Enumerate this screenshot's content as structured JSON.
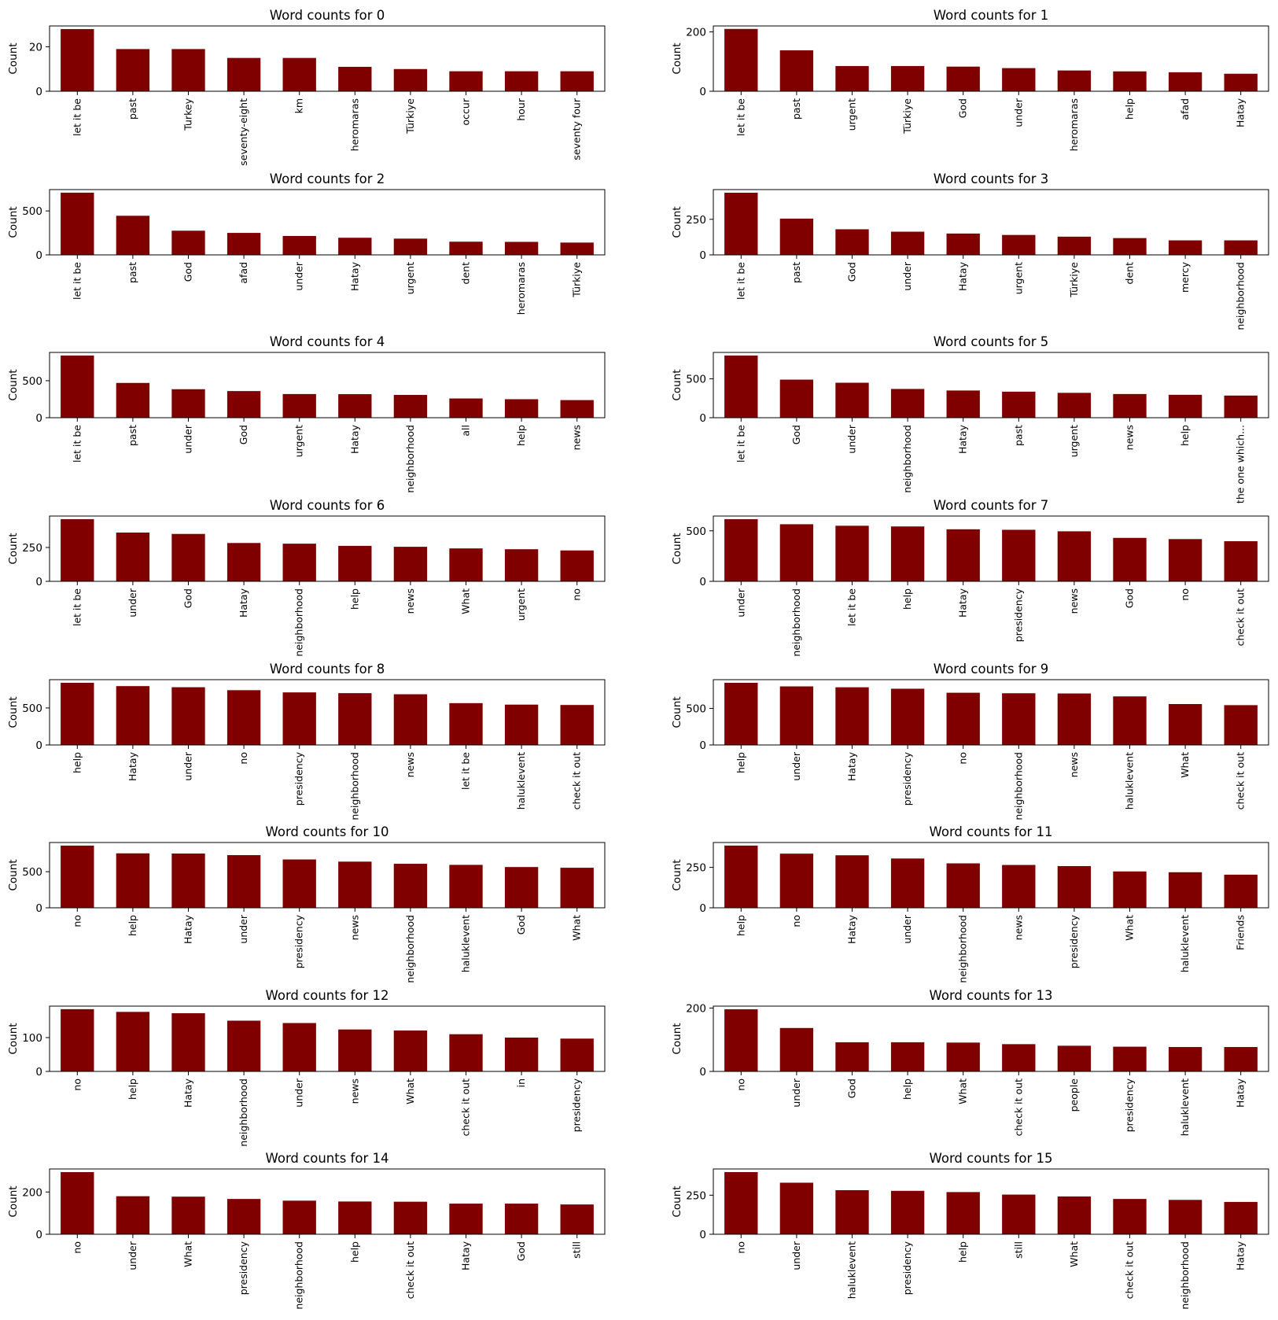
{
  "chart_data": [
    {
      "type": "bar",
      "title": "Word counts for 0",
      "ylabel": "Count",
      "yticks": [
        0,
        20
      ],
      "ylim": [
        0,
        29.4
      ],
      "categories": [
        "let it be",
        "past",
        "Turkey",
        "seventy-eight",
        "km",
        "heromaras",
        "Türkiye",
        "occur",
        "hour",
        "seventy four"
      ],
      "values": [
        28,
        19,
        19,
        15,
        15,
        11,
        10,
        9,
        9,
        9
      ]
    },
    {
      "type": "bar",
      "title": "Word counts for 1",
      "ylabel": "Count",
      "yticks": [
        0,
        200
      ],
      "ylim": [
        0,
        220
      ],
      "categories": [
        "let it be",
        "past",
        "urgent",
        "Türkiye",
        "God",
        "under",
        "heromaras",
        "help",
        "afad",
        "Hatay"
      ],
      "values": [
        210,
        138,
        85,
        85,
        83,
        78,
        70,
        67,
        64,
        59
      ]
    },
    {
      "type": "bar",
      "title": "Word counts for 2",
      "ylabel": "Count",
      "yticks": [
        0,
        500
      ],
      "ylim": [
        0,
        743
      ],
      "categories": [
        "let it be",
        "past",
        "God",
        "afad",
        "under",
        "Hatay",
        "urgent",
        "dent",
        "heromaras",
        "Türkiye"
      ],
      "values": [
        708,
        445,
        275,
        250,
        215,
        195,
        185,
        150,
        148,
        140
      ]
    },
    {
      "type": "bar",
      "title": "Word counts for 3",
      "ylabel": "Count",
      "yticks": [
        0,
        250
      ],
      "ylim": [
        0,
        459
      ],
      "categories": [
        "let it be",
        "past",
        "God",
        "under",
        "Hatay",
        "urgent",
        "Türkiye",
        "dent",
        "mercy",
        "neighborhood"
      ],
      "values": [
        437,
        255,
        180,
        163,
        150,
        140,
        128,
        118,
        102,
        102
      ]
    },
    {
      "type": "bar",
      "title": "Word counts for 4",
      "ylabel": "Count",
      "yticks": [
        0,
        500
      ],
      "ylim": [
        0,
        882
      ],
      "categories": [
        "let it be",
        "past",
        "under",
        "God",
        "urgent",
        "Hatay",
        "neighborhood",
        "all",
        "help",
        "news"
      ],
      "values": [
        840,
        470,
        385,
        360,
        320,
        318,
        308,
        260,
        250,
        238
      ]
    },
    {
      "type": "bar",
      "title": "Word counts for 5",
      "ylabel": "Count",
      "yticks": [
        0,
        500
      ],
      "ylim": [
        0,
        840
      ],
      "categories": [
        "let it be",
        "God",
        "under",
        "neighborhood",
        "Hatay",
        "past",
        "urgent",
        "news",
        "help",
        "the one which..."
      ],
      "values": [
        800,
        490,
        450,
        370,
        350,
        335,
        320,
        305,
        295,
        285
      ]
    },
    {
      "type": "bar",
      "title": "Word counts for 6",
      "ylabel": "Count",
      "yticks": [
        0,
        250
      ],
      "ylim": [
        0,
        482
      ],
      "categories": [
        "let it be",
        "under",
        "God",
        "Hatay",
        "neighborhood",
        "help",
        "news",
        "What",
        "urgent",
        "no"
      ],
      "values": [
        459,
        360,
        350,
        283,
        278,
        262,
        255,
        243,
        237,
        228
      ]
    },
    {
      "type": "bar",
      "title": "Word counts for 7",
      "ylabel": "Count",
      "yticks": [
        0,
        500
      ],
      "ylim": [
        0,
        646
      ],
      "categories": [
        "under",
        "neighborhood",
        "let it be",
        "help",
        "Hatay",
        "presidency",
        "news",
        "God",
        "no",
        "check it out"
      ],
      "values": [
        615,
        565,
        550,
        543,
        515,
        510,
        495,
        430,
        418,
        397
      ]
    },
    {
      "type": "bar",
      "title": "Word counts for 8",
      "ylabel": "Count",
      "yticks": [
        0,
        500
      ],
      "ylim": [
        0,
        882
      ],
      "categories": [
        "help",
        "Hatay",
        "under",
        "no",
        "presidency",
        "neighborhood",
        "news",
        "let it be",
        "haluklevent",
        "check it out"
      ],
      "values": [
        840,
        795,
        780,
        740,
        710,
        700,
        685,
        565,
        545,
        540
      ]
    },
    {
      "type": "bar",
      "title": "Word counts for 9",
      "ylabel": "Count",
      "yticks": [
        0,
        500
      ],
      "ylim": [
        0,
        894
      ],
      "categories": [
        "help",
        "under",
        "Hatay",
        "presidency",
        "no",
        "neighborhood",
        "news",
        "haluklevent",
        "What",
        "check it out"
      ],
      "values": [
        851,
        802,
        790,
        770,
        715,
        708,
        705,
        665,
        560,
        545
      ]
    },
    {
      "type": "bar",
      "title": "Word counts for 10",
      "ylabel": "Count",
      "yticks": [
        0,
        500
      ],
      "ylim": [
        0,
        905
      ],
      "categories": [
        "no",
        "help",
        "Hatay",
        "under",
        "presidency",
        "news",
        "neighborhood",
        "haluklevent",
        "God",
        "What"
      ],
      "values": [
        862,
        755,
        752,
        730,
        670,
        640,
        610,
        595,
        565,
        555
      ]
    },
    {
      "type": "bar",
      "title": "Word counts for 11",
      "ylabel": "Count",
      "yticks": [
        0,
        250
      ],
      "ylim": [
        0,
        404
      ],
      "categories": [
        "help",
        "no",
        "Hatay",
        "under",
        "neighborhood",
        "news",
        "presidency",
        "What",
        "haluklevent",
        "Friends"
      ],
      "values": [
        385,
        335,
        325,
        305,
        275,
        265,
        258,
        225,
        220,
        205
      ]
    },
    {
      "type": "bar",
      "title": "Word counts for 12",
      "ylabel": "Count",
      "yticks": [
        0,
        100
      ],
      "ylim": [
        0,
        193
      ],
      "categories": [
        "no",
        "help",
        "Hatay",
        "neighborhood",
        "under",
        "news",
        "What",
        "check it out",
        "in",
        "presidency"
      ],
      "values": [
        184,
        176,
        172,
        150,
        143,
        124,
        121,
        110,
        100,
        97
      ]
    },
    {
      "type": "bar",
      "title": "Word counts for 13",
      "ylabel": "Count",
      "yticks": [
        0,
        200
      ],
      "ylim": [
        0,
        206
      ],
      "categories": [
        "no",
        "under",
        "God",
        "help",
        "What",
        "check it out",
        "people",
        "presidency",
        "haluklevent",
        "Hatay"
      ],
      "values": [
        196,
        137,
        92,
        92,
        91,
        86,
        81,
        78,
        77,
        77
      ]
    },
    {
      "type": "bar",
      "title": "Word counts for 14",
      "ylabel": "Count",
      "yticks": [
        0,
        200
      ],
      "ylim": [
        0,
        309
      ],
      "categories": [
        "no",
        "under",
        "What",
        "presidency",
        "neighborhood",
        "help",
        "check it out",
        "Hatay",
        "God",
        "still"
      ],
      "values": [
        294,
        180,
        178,
        167,
        159,
        155,
        154,
        145,
        145,
        141
      ]
    },
    {
      "type": "bar",
      "title": "Word counts for 15",
      "ylabel": "Count",
      "yticks": [
        0,
        250
      ],
      "ylim": [
        0,
        418
      ],
      "categories": [
        "no",
        "under",
        "haluklevent",
        "presidency",
        "help",
        "still",
        "What",
        "check it out",
        "neighborhood",
        "Hatay"
      ],
      "values": [
        398,
        330,
        282,
        278,
        270,
        254,
        242,
        226,
        220,
        207
      ]
    }
  ]
}
